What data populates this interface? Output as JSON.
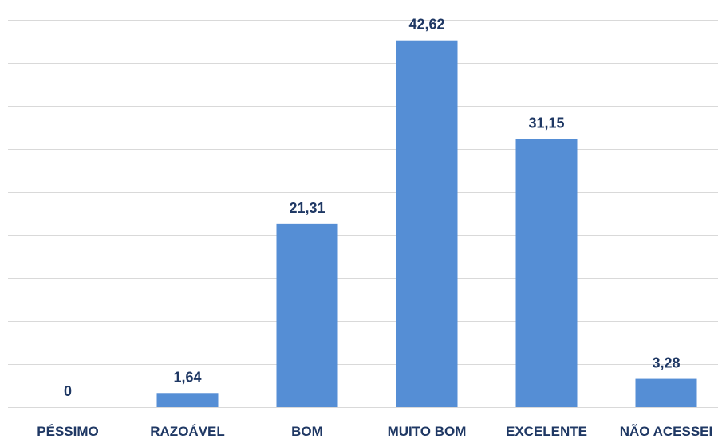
{
  "chart_data": {
    "type": "bar",
    "categories": [
      "PÉSSIMO",
      "RAZOÁVEL",
      "BOM",
      "MUITO BOM",
      "EXCELENTE",
      "NÃO ACESSEI"
    ],
    "values": [
      0,
      1.64,
      21.31,
      42.62,
      31.15,
      3.28
    ],
    "data_labels": [
      "0",
      "1,64",
      "21,31",
      "42,62",
      "31,15",
      "3,28"
    ],
    "title": "",
    "xlabel": "",
    "ylabel": "",
    "ylim": [
      0,
      45
    ],
    "grid": true,
    "legend": "none",
    "bar_color": "#558ed5",
    "label_color": "#1f3864"
  }
}
